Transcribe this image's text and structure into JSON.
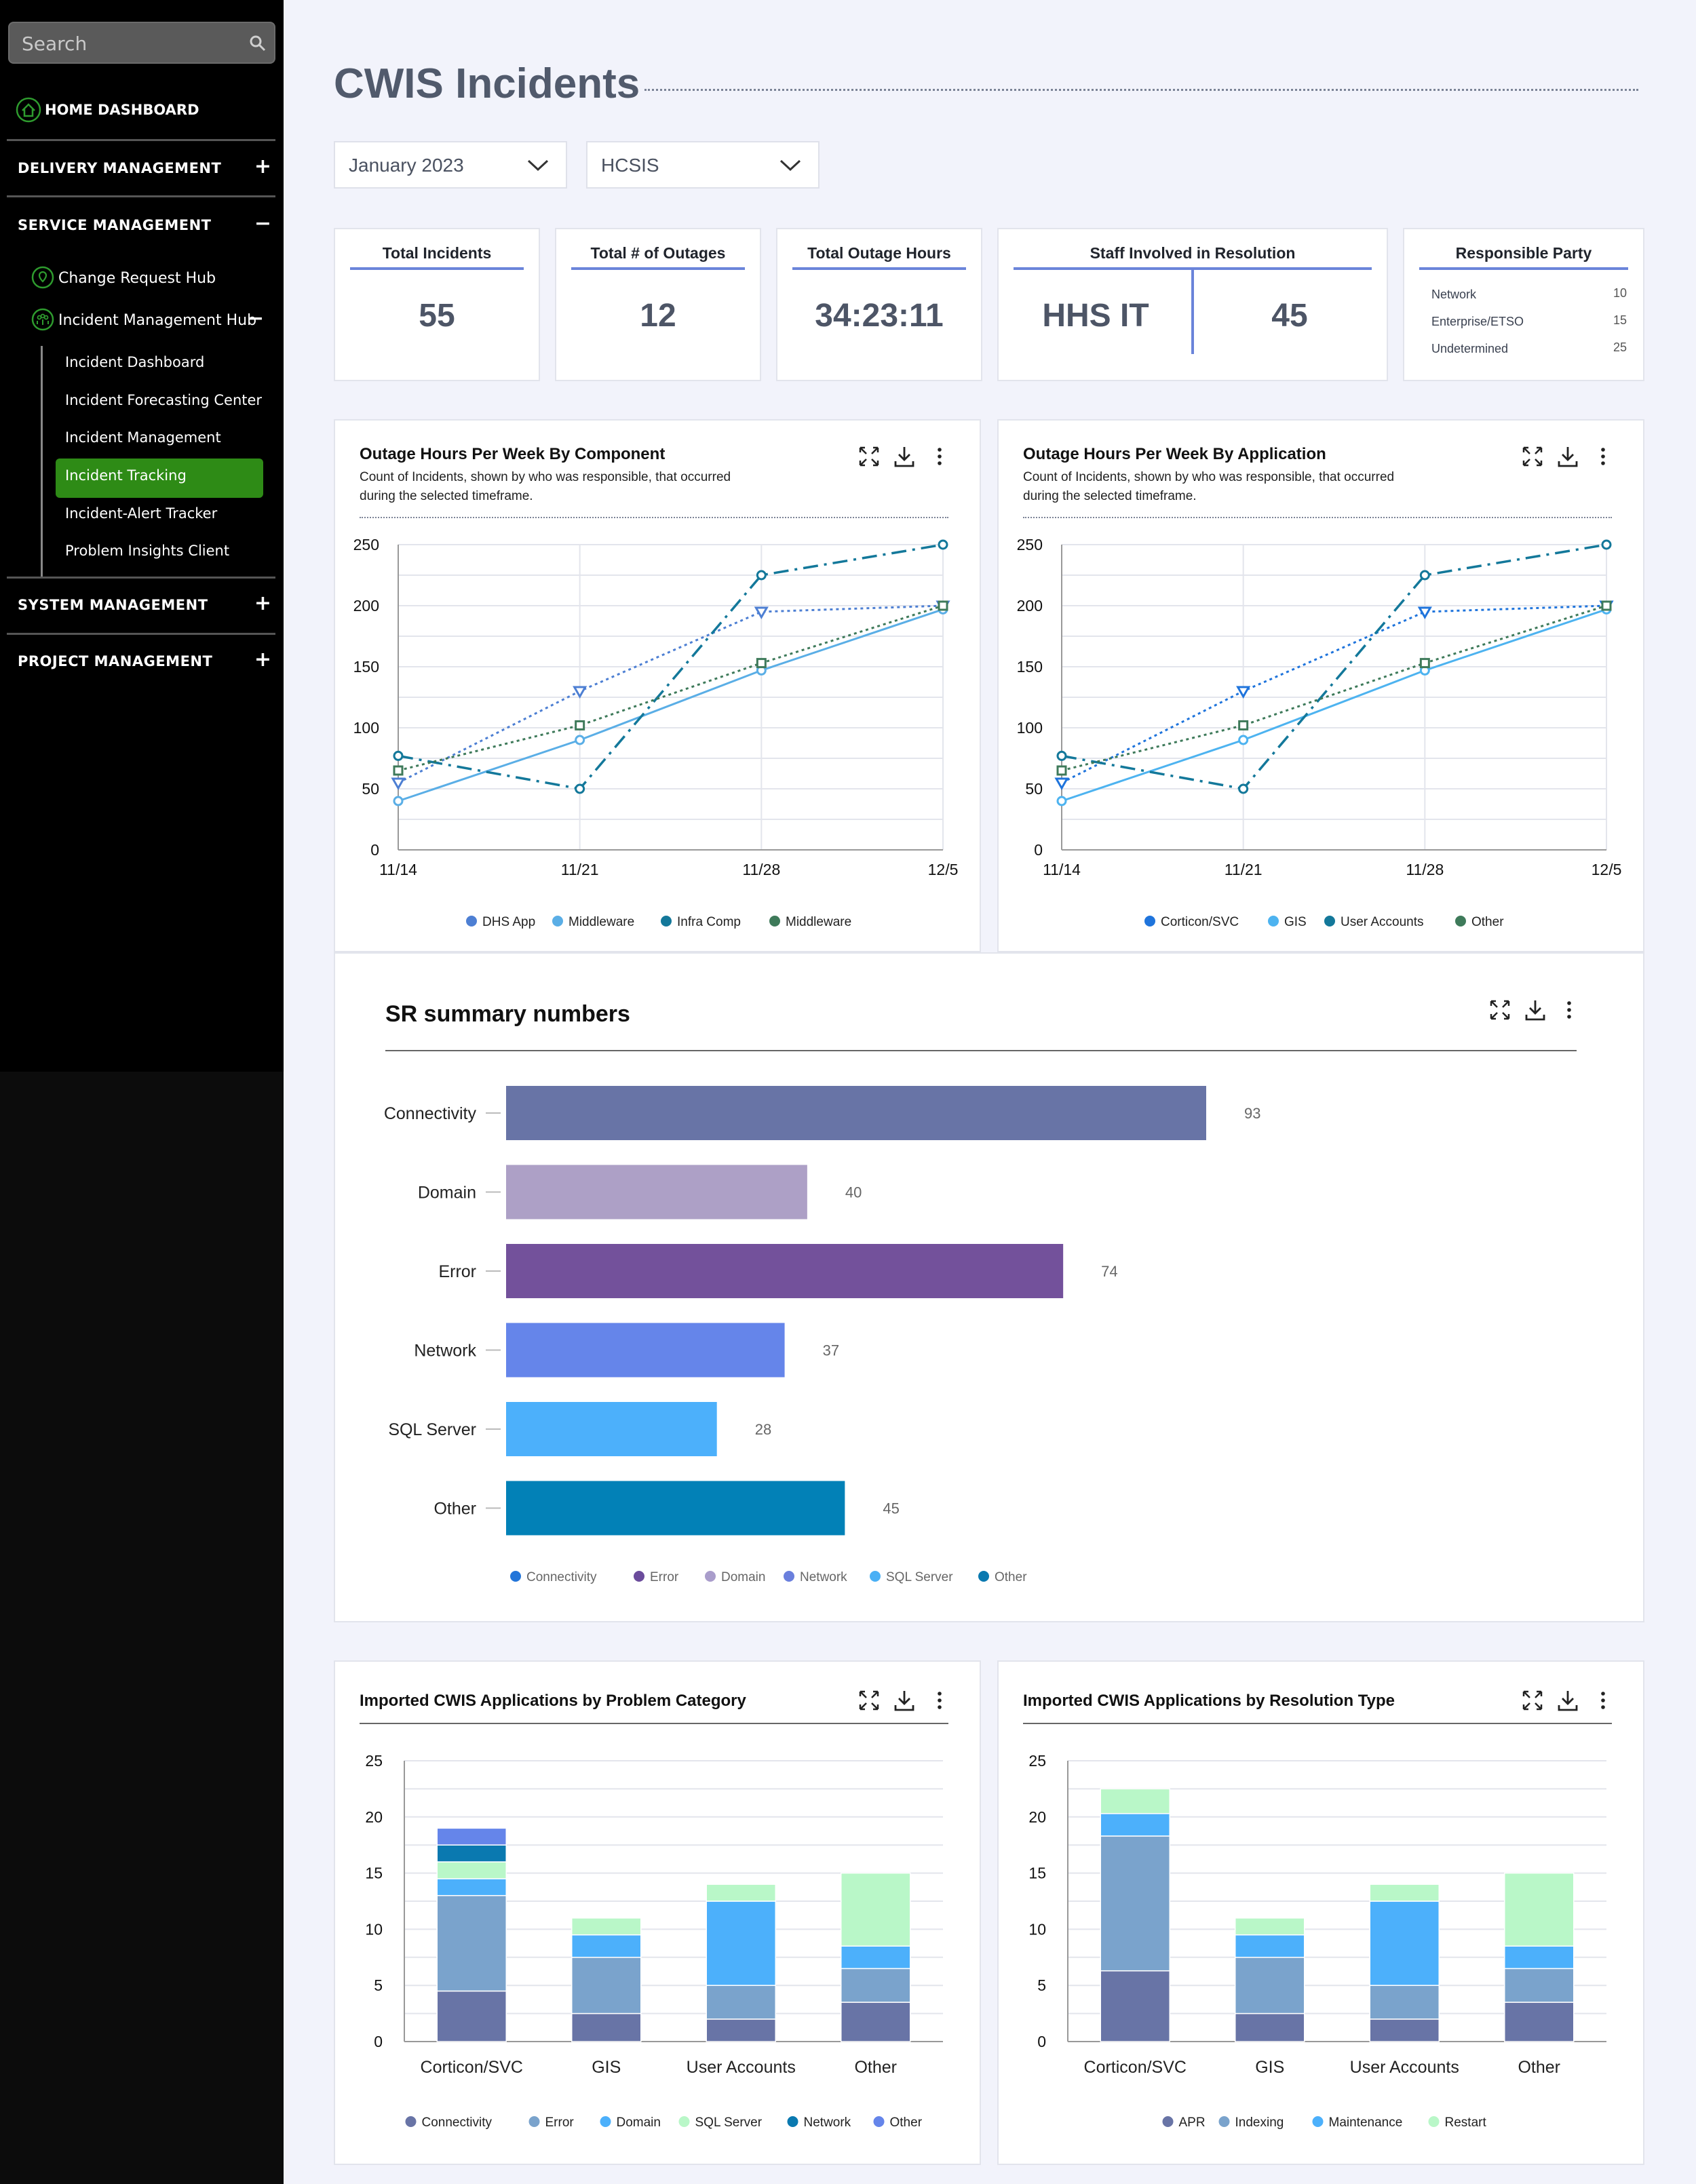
{
  "sidebar": {
    "search_placeholder": "Search",
    "home_label": "HOME DASHBOARD",
    "sections": {
      "delivery": "DELIVERY MANAGEMENT",
      "service": "SERVICE MANAGEMENT",
      "system": "SYSTEM MANAGEMENT",
      "project": "PROJECT MANAGEMENT"
    },
    "change_request_hub": "Change Request Hub",
    "incident_management_hub": "Incident Management Hub",
    "leaves": [
      "Incident Dashboard",
      "Incident Forecasting Center",
      "Incident Management",
      "Incident Tracking",
      "Incident-Alert Tracker",
      "Problem Insights Client"
    ],
    "active_leaf": "Incident Tracking",
    "active_color": "#2e8b16"
  },
  "header": {
    "title": "CWIS Incidents",
    "month_select": "January 2023",
    "program_select": "HCSIS"
  },
  "kpis": {
    "total_incidents": {
      "label": "Total Incidents",
      "value": "55"
    },
    "total_outages": {
      "label": "Total # of Outages",
      "value": "12"
    },
    "total_outage_hours": {
      "label": "Total Outage Hours",
      "value": "34:23:11"
    },
    "staff": {
      "label": "Staff Involved in Resolution",
      "party": "HHS IT",
      "value": "45"
    },
    "responsible": {
      "label": "Responsible Party",
      "rows": [
        {
          "name": "Network",
          "value": "10"
        },
        {
          "name": "Enterprise/ETSO",
          "value": "15"
        },
        {
          "name": "Undetermined",
          "value": "25"
        }
      ]
    }
  },
  "charts": {
    "component": {
      "title": "Outage Hours Per Week By Component",
      "subtitle": "Count of Incidents, shown by who was responsible, that occurred during the selected timeframe."
    },
    "application": {
      "title": "Outage Hours Per Week By Application",
      "subtitle": "Count of Incidents, shown by who was responsible, that occurred during the selected timeframe."
    },
    "sr": {
      "title": "SR summary numbers"
    },
    "problem_category": {
      "title": "Imported CWIS Applications by Problem Category"
    },
    "resolution_type": {
      "title": "Imported CWIS Applications by Resolution Type"
    }
  },
  "chart_data": [
    {
      "type": "line",
      "title": "Outage Hours Per Week By Component",
      "x": [
        "11/14",
        "11/21",
        "11/28",
        "12/5"
      ],
      "ylim": [
        0,
        250
      ],
      "yticks": [
        0,
        50,
        100,
        150,
        200,
        250
      ],
      "series": [
        {
          "name": "DHS App",
          "values": [
            55,
            130,
            195,
            200
          ],
          "color": "#4d7fd3",
          "style": "dotted",
          "marker": "triangle"
        },
        {
          "name": "Middleware",
          "values": [
            40,
            90,
            147,
            197
          ],
          "color": "#5aaee6",
          "style": "solid",
          "marker": "circle"
        },
        {
          "name": "Infra Comp",
          "values": [
            77,
            50,
            225,
            250
          ],
          "color": "#13789a",
          "style": "dashdot",
          "marker": "circle"
        },
        {
          "name": "Middleware",
          "values": [
            65,
            102,
            153,
            200
          ],
          "color": "#3e7a5a",
          "style": "dotted",
          "marker": "square"
        }
      ],
      "legend": "bottom"
    },
    {
      "type": "line",
      "title": "Outage Hours Per Week By Application",
      "x": [
        "11/14",
        "11/21",
        "11/28",
        "12/5"
      ],
      "ylim": [
        0,
        250
      ],
      "yticks": [
        0,
        50,
        100,
        150,
        200,
        250
      ],
      "series": [
        {
          "name": "Corticon/SVC",
          "values": [
            55,
            130,
            195,
            200
          ],
          "color": "#1f74dc",
          "style": "dotted",
          "marker": "triangle"
        },
        {
          "name": "GIS",
          "values": [
            40,
            90,
            147,
            197
          ],
          "color": "#4db3f0",
          "style": "solid",
          "marker": "circle"
        },
        {
          "name": "User Accounts",
          "values": [
            77,
            50,
            225,
            250
          ],
          "color": "#13789a",
          "style": "dashdot",
          "marker": "circle"
        },
        {
          "name": "Other",
          "values": [
            65,
            102,
            153,
            200
          ],
          "color": "#3e7a5a",
          "style": "dotted",
          "marker": "square"
        }
      ],
      "legend": "bottom"
    },
    {
      "type": "bar",
      "orientation": "horizontal",
      "title": "SR summary numbers",
      "categories": [
        "Connectivity",
        "Domain",
        "Error",
        "Network",
        "SQL Server",
        "Other"
      ],
      "values": [
        93,
        40,
        74,
        37,
        28,
        45
      ],
      "colors": [
        "#6874a6",
        "#ada0c6",
        "#73519b",
        "#6585ea",
        "#4cb0fb",
        "#0281b7"
      ],
      "legend": [
        "Connectivity",
        "Error",
        "Domain",
        "Network",
        "SQL Server",
        "Other"
      ],
      "legend_colors": [
        "#2275d9",
        "#6b4c9c",
        "#a99dcb",
        "#6a7fdd",
        "#4ab0f5",
        "#0a79b0"
      ]
    },
    {
      "type": "bar",
      "stacked": true,
      "title": "Imported CWIS Applications by Problem Category",
      "categories": [
        "Corticon/SVC",
        "GIS",
        "User Accounts",
        "Other"
      ],
      "ylim": [
        0,
        25
      ],
      "yticks": [
        0,
        5,
        10,
        15,
        20,
        25
      ],
      "series": [
        {
          "name": "Connectivity",
          "color": "#6874a6",
          "values": [
            4.5,
            2.5,
            2,
            3.5
          ]
        },
        {
          "name": "Error",
          "color": "#7aa3cc",
          "values": [
            8.5,
            5,
            3,
            3
          ]
        },
        {
          "name": "Domain",
          "color": "#4cb0fb",
          "values": [
            1.5,
            2,
            7.5,
            2
          ]
        },
        {
          "name": "SQL Server",
          "color": "#b9f7c8",
          "values": [
            1.5,
            1.5,
            1.5,
            6.5
          ]
        },
        {
          "name": "Network",
          "color": "#0a79b0",
          "values": [
            1.5,
            0,
            0,
            0
          ]
        },
        {
          "name": "Other",
          "color": "#6585ea",
          "values": [
            1.5,
            0,
            0,
            0
          ]
        }
      ],
      "legend": "bottom"
    },
    {
      "type": "bar",
      "stacked": true,
      "title": "Imported CWIS Applications by Resolution Type",
      "categories": [
        "Corticon/SVC",
        "GIS",
        "User Accounts",
        "Other"
      ],
      "ylim": [
        0,
        25
      ],
      "yticks": [
        0,
        5,
        10,
        15,
        20,
        25
      ],
      "series": [
        {
          "name": "APR",
          "color": "#6874a6",
          "values": [
            6.3,
            2.5,
            2,
            3.5
          ]
        },
        {
          "name": "Indexing",
          "color": "#7aa3cc",
          "values": [
            12,
            5,
            3,
            3
          ]
        },
        {
          "name": "Maintenance",
          "color": "#4cb0fb",
          "values": [
            2,
            2,
            7.5,
            2
          ]
        },
        {
          "name": "Restart",
          "color": "#b9f7c8",
          "values": [
            2.2,
            1.5,
            1.5,
            6.5
          ]
        }
      ],
      "legend": "bottom"
    }
  ]
}
